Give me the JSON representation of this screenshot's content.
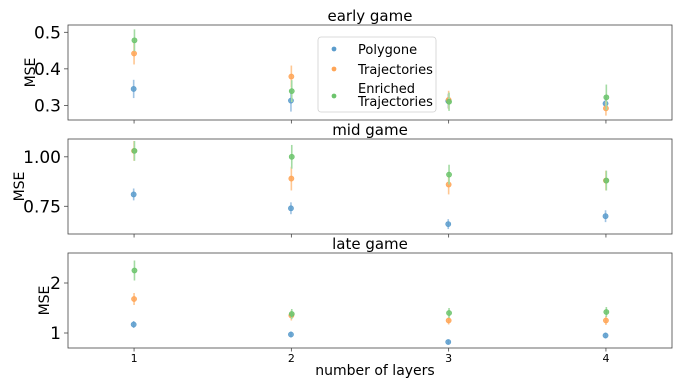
{
  "chart_data": {
    "type": "scatter",
    "xlabel": "number of layers",
    "x": [
      1,
      2,
      3,
      4
    ],
    "x_tick_labels": [
      "1",
      "2",
      "3",
      "4"
    ],
    "legend": {
      "placement": "upper-center",
      "entries": [
        "Polygone",
        "Trajectories",
        "Enriched\nTrajectories"
      ]
    },
    "colors": {
      "Polygone": "#5b9ccc",
      "Trajectories": "#ffa556",
      "Enriched Trajectories": "#6cc46c",
      "Polygone_err": "#9fc3e3",
      "Trajectories_err": "#ffc792",
      "Enriched Trajectories_err": "#a3dba3"
    },
    "panels": [
      {
        "title": "early game",
        "ylabel": "MSE",
        "ylim": [
          0.26,
          0.52
        ],
        "yticks": [
          0.3,
          0.4,
          0.5
        ],
        "ytick_labels": [
          "0.3",
          "0.4",
          "0.5"
        ],
        "series": [
          {
            "name": "Polygone",
            "values": [
              0.345,
              0.313,
              0.312,
              0.305
            ],
            "err": [
              0.025,
              0.03,
              0.02,
              0.02
            ]
          },
          {
            "name": "Trajectories",
            "values": [
              0.442,
              0.379,
              0.315,
              0.292
            ],
            "err": [
              0.03,
              0.03,
              0.025,
              0.02
            ]
          },
          {
            "name": "Enriched Trajectories",
            "values": [
              0.478,
              0.339,
              0.31,
              0.322
            ],
            "err": [
              0.03,
              0.03,
              0.025,
              0.035
            ]
          }
        ]
      },
      {
        "title": "mid game",
        "ylabel": "MSE",
        "ylim": [
          0.61,
          1.09
        ],
        "yticks": [
          0.75,
          1.0
        ],
        "ytick_labels": [
          "0.75",
          "1.00"
        ],
        "series": [
          {
            "name": "Polygone",
            "values": [
              0.81,
              0.74,
              0.66,
              0.7
            ],
            "err": [
              0.03,
              0.03,
              0.025,
              0.03
            ]
          },
          {
            "name": "Trajectories",
            "values": [
              1.03,
              0.89,
              0.86,
              0.88
            ],
            "err": [
              0.05,
              0.06,
              0.05,
              0.05
            ]
          },
          {
            "name": "Enriched Trajectories",
            "values": [
              1.03,
              1.0,
              0.91,
              0.88
            ],
            "err": [
              0.05,
              0.06,
              0.05,
              0.05
            ]
          }
        ]
      },
      {
        "title": "late game",
        "ylabel": "MSE",
        "ylim": [
          0.7,
          2.6
        ],
        "yticks": [
          1,
          2
        ],
        "ytick_labels": [
          "1",
          "2"
        ],
        "series": [
          {
            "name": "Polygone",
            "values": [
              1.17,
              0.97,
              0.82,
              0.95
            ],
            "err": [
              0.07,
              0.06,
              0.04,
              0.06
            ]
          },
          {
            "name": "Trajectories",
            "values": [
              1.68,
              1.35,
              1.25,
              1.25
            ],
            "err": [
              0.12,
              0.1,
              0.08,
              0.09
            ]
          },
          {
            "name": "Enriched Trajectories",
            "values": [
              2.25,
              1.38,
              1.4,
              1.42
            ],
            "err": [
              0.2,
              0.1,
              0.1,
              0.1
            ]
          }
        ]
      }
    ]
  }
}
